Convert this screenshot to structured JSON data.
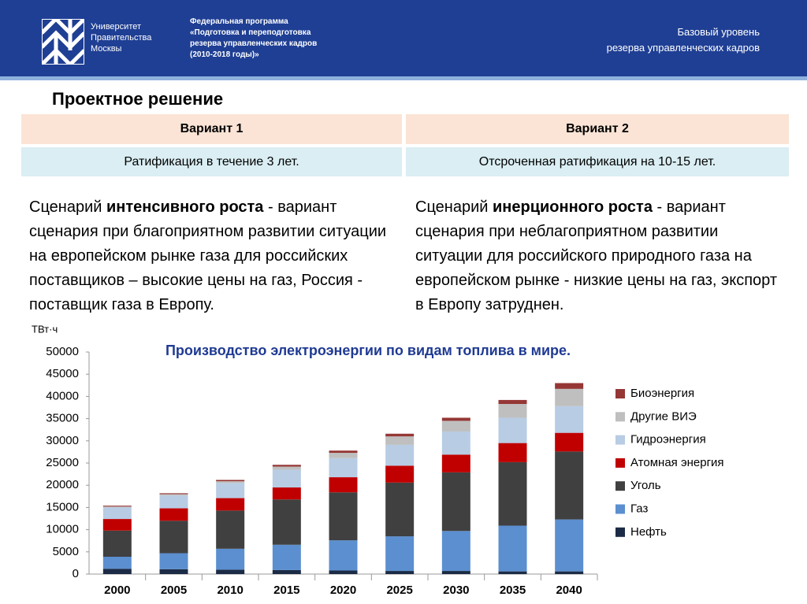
{
  "header": {
    "university": [
      "Университет",
      "Правительства",
      "Москвы"
    ],
    "program": [
      "Федеральная программа",
      "«Подготовка и переподготовка",
      "резерва управленческих кадров",
      "(2010-2018 годы)»"
    ],
    "level": [
      "Базовый уровень",
      "резерва управленческих кадров"
    ]
  },
  "title": "Проектное решение",
  "table": {
    "headers": [
      "Вариант 1",
      "Вариант 2"
    ],
    "rows": [
      [
        "Ратификация в течение 3  лет.",
        "Отсроченная ратификация на 10-15 лет."
      ]
    ]
  },
  "scenarios": [
    {
      "before": "Сценарий ",
      "bold": "интенсивного роста",
      "after": " - вариант сценария при благоприятном развитии ситуации на европейском рынке газа для российских поставщиков – высокие цены на газ, Россия -  поставщик газа в Европу."
    },
    {
      "before": "Сценарий ",
      "bold": "инерционного роста",
      "after": " - вариант сценария при неблагоприятном развитии ситуации для российского природного газа на европейском рынке - низкие цены на газ, экспорт в Европу затруднен."
    }
  ],
  "chart_data": {
    "type": "stacked_bar",
    "title": "Производство электроэнергии по видам топлива в мире.",
    "y_label": "ТВт·ч",
    "categories": [
      "2000",
      "2005",
      "2010",
      "2015",
      "2020",
      "2025",
      "2030",
      "2035",
      "2040"
    ],
    "series": [
      {
        "name": "Нефть",
        "color": "#1c2b45",
        "values": [
          1200,
          1100,
          1000,
          900,
          800,
          700,
          700,
          600,
          600
        ]
      },
      {
        "name": "Газ",
        "color": "#5b8fd0",
        "values": [
          2700,
          3600,
          4700,
          5700,
          6800,
          7800,
          9000,
          10300,
          11700
        ]
      },
      {
        "name": "Уголь",
        "color": "#404040",
        "values": [
          5900,
          7300,
          8600,
          10200,
          10800,
          12100,
          13200,
          14300,
          15300
        ]
      },
      {
        "name": "Атомная энергия",
        "color": "#c00000",
        "values": [
          2600,
          2800,
          2800,
          2700,
          3400,
          3800,
          4000,
          4300,
          4200
        ]
      },
      {
        "name": "Гидроэнергия",
        "color": "#b8cce4",
        "values": [
          2600,
          2900,
          3400,
          4000,
          4300,
          4700,
          5200,
          5700,
          6000
        ]
      },
      {
        "name": "Другие ВИЭ",
        "color": "#bfbfbf",
        "values": [
          200,
          300,
          400,
          700,
          1200,
          1900,
          2400,
          3100,
          3900
        ]
      },
      {
        "name": "Биоэнергия",
        "color": "#953735",
        "values": [
          200,
          200,
          300,
          400,
          500,
          600,
          700,
          900,
          1300
        ]
      }
    ],
    "ylim": [
      0,
      50000
    ],
    "yticks": [
      0,
      5000,
      10000,
      15000,
      20000,
      25000,
      30000,
      35000,
      40000,
      45000,
      50000
    ]
  }
}
